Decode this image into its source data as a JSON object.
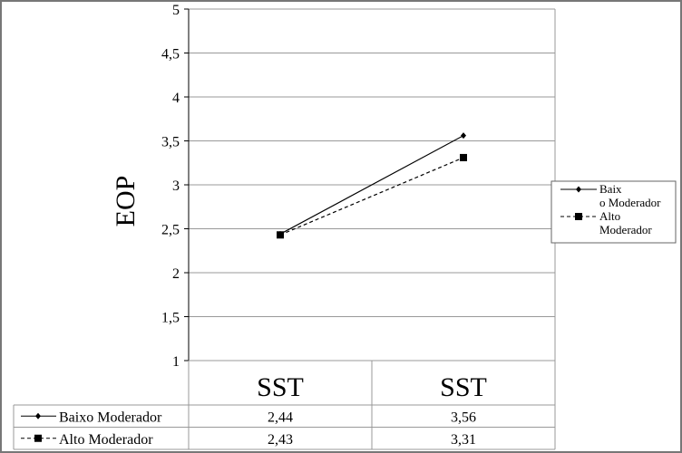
{
  "chart_data": {
    "type": "line",
    "title": "",
    "xlabel": "",
    "ylabel": "EOP",
    "categories": [
      "SST",
      "SST"
    ],
    "ylim": [
      1,
      5
    ],
    "yticks": [
      "1",
      "1,5",
      "2",
      "2,5",
      "3",
      "3,5",
      "4",
      "4,5",
      "5"
    ],
    "grid": true,
    "legend_position": "right",
    "series": [
      {
        "name": "Baixo Moderador",
        "legend_label": "Baix o Moderador",
        "values": [
          2.44,
          3.56
        ],
        "labels": [
          "2,44",
          "3,56"
        ],
        "marker": "diamond",
        "dash": "solid",
        "color": "#000000"
      },
      {
        "name": "Alto Moderador",
        "legend_label": "Alto Moderador",
        "values": [
          2.43,
          3.31
        ],
        "labels": [
          "2,43",
          "3,31"
        ],
        "marker": "square",
        "dash": "dashed",
        "color": "#000000"
      }
    ],
    "data_table": true
  }
}
